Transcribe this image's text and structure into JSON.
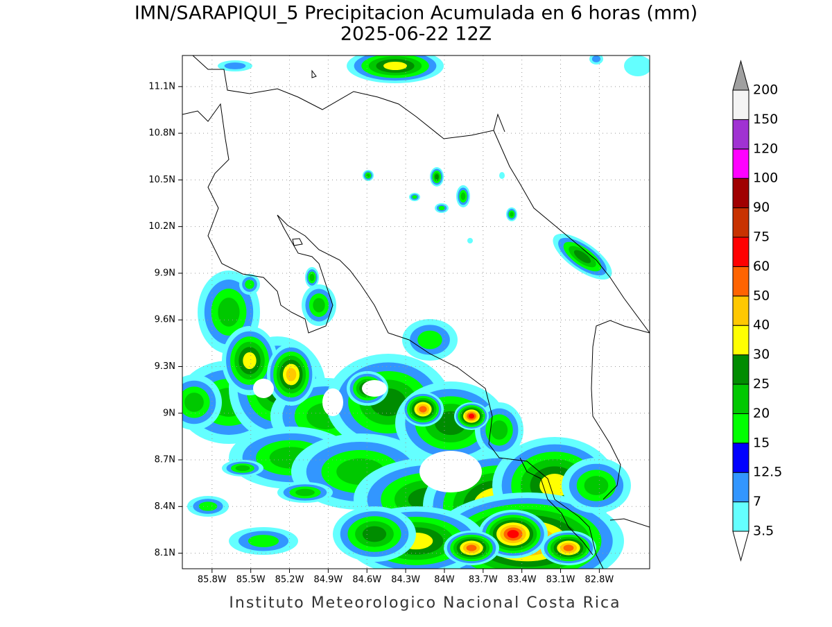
{
  "map": {
    "title": "IMN/SARAPIQUI_5 Precipitacion Acumulada en 6 horas (mm)",
    "subtitle": "2025-06-22 12Z",
    "footer": "Instituto Meteorologico Nacional Costa Rica",
    "xlim": [
      -86.03,
      -82.41
    ],
    "ylim": [
      8.0,
      11.3
    ],
    "grid": true,
    "xticks": [
      {
        "value": -85.8,
        "label": "85.8W"
      },
      {
        "value": -85.5,
        "label": "85.5W"
      },
      {
        "value": -85.2,
        "label": "85.2W"
      },
      {
        "value": -84.9,
        "label": "84.9W"
      },
      {
        "value": -84.6,
        "label": "84.6W"
      },
      {
        "value": -84.3,
        "label": "84.3W"
      },
      {
        "value": -84.0,
        "label": "84W"
      },
      {
        "value": -83.7,
        "label": "83.7W"
      },
      {
        "value": -83.4,
        "label": "83.4W"
      },
      {
        "value": -83.1,
        "label": "83.1W"
      },
      {
        "value": -82.8,
        "label": "82.8W"
      }
    ],
    "yticks": [
      {
        "value": 8.1,
        "label": "8.1N"
      },
      {
        "value": 8.4,
        "label": "8.4N"
      },
      {
        "value": 8.7,
        "label": "8.7N"
      },
      {
        "value": 9.0,
        "label": "9N"
      },
      {
        "value": 9.3,
        "label": "9.3N"
      },
      {
        "value": 9.6,
        "label": "9.6N"
      },
      {
        "value": 9.9,
        "label": "9.9N"
      },
      {
        "value": 10.2,
        "label": "10.2N"
      },
      {
        "value": 10.5,
        "label": "10.5N"
      },
      {
        "value": 10.8,
        "label": "10.8N"
      },
      {
        "value": 11.1,
        "label": "11.1N"
      }
    ]
  },
  "legend": {
    "levels": [
      3.5,
      7,
      12.5,
      15,
      20,
      25,
      30,
      40,
      50,
      60,
      75,
      90,
      100,
      120,
      150,
      200
    ],
    "colors": [
      "#ffffff",
      "#64ffff",
      "#3296ff",
      "#0000ff",
      "#00ff00",
      "#00c800",
      "#008c00",
      "#ffff00",
      "#ffc800",
      "#ff6400",
      "#ff0000",
      "#c83200",
      "#a00000",
      "#ff00ff",
      "#a032d2",
      "#f4f4f4",
      "#a0a0a0"
    ]
  }
}
